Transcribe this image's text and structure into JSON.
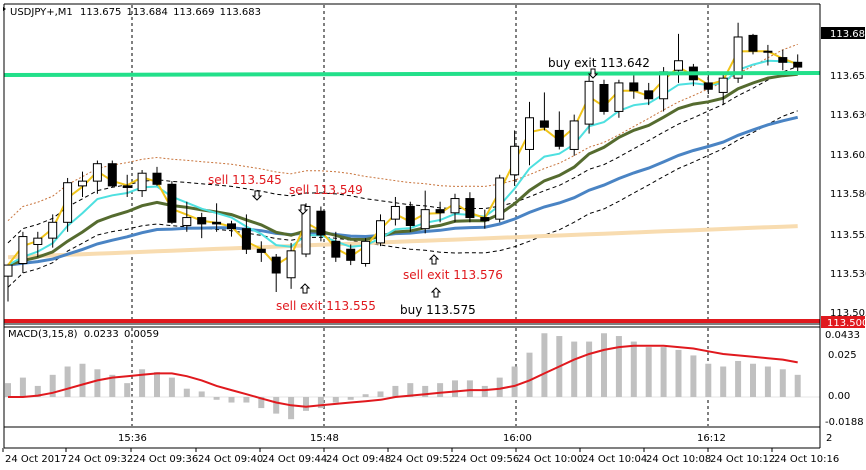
{
  "header": {
    "symbol": "USDJPY+,M1",
    "open": "113.675",
    "high": "113.684",
    "low": "113.669",
    "close": "113.683"
  },
  "macd": {
    "label": "MACD(3,15,8)",
    "main": "0.0233",
    "signal": "0.0059",
    "ticks": [
      "0.0433",
      "0.025",
      "0.00",
      "-0.0188"
    ]
  },
  "price_axis": {
    "labels": [
      "113.655",
      "113.630",
      "113.605",
      "113.580",
      "113.555",
      "113.530",
      "113.505"
    ],
    "current": "113.683",
    "marker_red": "113.500"
  },
  "time_axis": {
    "top_labels": [
      "15:36",
      "15:48",
      "16:00",
      "16:12"
    ],
    "bottom_labels": [
      "24 Oct 2017",
      "24 Oct 09:32",
      "24 Oct 09:36",
      "24 Oct 09:40",
      "24 Oct 09:44",
      "24 Oct 09:48",
      "24 Oct 09:52",
      "24 Oct 09:56",
      "24 Oct 10:00",
      "24 Oct 10:04",
      "24 Oct 10:08",
      "24 Oct 10:12",
      "24 Oct 10:16"
    ],
    "tag": "2"
  },
  "trade_labels": [
    {
      "id": "sell-1",
      "text": "sell 113.545"
    },
    {
      "id": "sell-2",
      "text": "sell 113.549"
    },
    {
      "id": "sell-exit-1",
      "text": "sell exit 113.555"
    },
    {
      "id": "sell-exit-2",
      "text": "sell exit 113.576"
    },
    {
      "id": "buy-1",
      "text": "buy 113.575"
    },
    {
      "id": "buy-exit-1",
      "text": "buy exit 113.642"
    }
  ],
  "colors": {
    "bull": "#ffffff",
    "bear": "#000000",
    "green_level": "#22e08a",
    "red_level": "#e0191e",
    "ma_fast": "#f0c419",
    "ma_cyan": "#4ee0e0",
    "ma_olive": "#556b2f",
    "ma_blue": "#4a84c4",
    "ma_beige": "#f8dcb0",
    "macd_signal": "#e0191e",
    "macd_hist": "#c0c0c0"
  },
  "candles": [
    {
      "o": 113.528,
      "h": 113.535,
      "l": 113.512,
      "c": 113.535
    },
    {
      "o": 113.536,
      "h": 113.556,
      "l": 113.53,
      "c": 113.553
    },
    {
      "o": 113.548,
      "h": 113.556,
      "l": 113.54,
      "c": 113.552
    },
    {
      "o": 113.552,
      "h": 113.567,
      "l": 113.546,
      "c": 113.562
    },
    {
      "o": 113.562,
      "h": 113.59,
      "l": 113.556,
      "c": 113.587
    },
    {
      "o": 113.585,
      "h": 113.594,
      "l": 113.578,
      "c": 113.588
    },
    {
      "o": 113.588,
      "h": 113.601,
      "l": 113.58,
      "c": 113.599
    },
    {
      "o": 113.599,
      "h": 113.601,
      "l": 113.584,
      "c": 113.585
    },
    {
      "o": 113.585,
      "h": 113.592,
      "l": 113.578,
      "c": 113.584
    },
    {
      "o": 113.582,
      "h": 113.595,
      "l": 113.578,
      "c": 113.593
    },
    {
      "o": 113.593,
      "h": 113.597,
      "l": 113.585,
      "c": 113.586
    },
    {
      "o": 113.586,
      "h": 113.588,
      "l": 113.561,
      "c": 113.562
    },
    {
      "o": 113.56,
      "h": 113.575,
      "l": 113.556,
      "c": 113.565
    },
    {
      "o": 113.565,
      "h": 113.568,
      "l": 113.552,
      "c": 113.561
    },
    {
      "o": 113.562,
      "h": 113.574,
      "l": 113.556,
      "c": 113.561
    },
    {
      "o": 113.561,
      "h": 113.563,
      "l": 113.553,
      "c": 113.558
    },
    {
      "o": 113.558,
      "h": 113.567,
      "l": 113.542,
      "c": 113.545
    },
    {
      "o": 113.545,
      "h": 113.55,
      "l": 113.537,
      "c": 113.543
    },
    {
      "o": 113.54,
      "h": 113.542,
      "l": 113.518,
      "c": 113.53
    },
    {
      "o": 113.527,
      "h": 113.549,
      "l": 113.52,
      "c": 113.544
    },
    {
      "o": 113.542,
      "h": 113.574,
      "l": 113.54,
      "c": 113.572
    },
    {
      "o": 113.569,
      "h": 113.572,
      "l": 113.55,
      "c": 113.554
    },
    {
      "o": 113.55,
      "h": 113.556,
      "l": 113.537,
      "c": 113.54
    },
    {
      "o": 113.545,
      "h": 113.548,
      "l": 113.535,
      "c": 113.538
    },
    {
      "o": 113.536,
      "h": 113.552,
      "l": 113.534,
      "c": 113.55
    },
    {
      "o": 113.549,
      "h": 113.567,
      "l": 113.547,
      "c": 113.563
    },
    {
      "o": 113.564,
      "h": 113.578,
      "l": 113.56,
      "c": 113.572
    },
    {
      "o": 113.572,
      "h": 113.575,
      "l": 113.556,
      "c": 113.56
    },
    {
      "o": 113.558,
      "h": 113.582,
      "l": 113.555,
      "c": 113.57
    },
    {
      "o": 113.57,
      "h": 113.575,
      "l": 113.562,
      "c": 113.568
    },
    {
      "o": 113.568,
      "h": 113.58,
      "l": 113.562,
      "c": 113.577
    },
    {
      "o": 113.577,
      "h": 113.581,
      "l": 113.562,
      "c": 113.565
    },
    {
      "o": 113.565,
      "h": 113.57,
      "l": 113.558,
      "c": 113.563
    },
    {
      "o": 113.564,
      "h": 113.592,
      "l": 113.562,
      "c": 113.59
    },
    {
      "o": 113.592,
      "h": 113.62,
      "l": 113.585,
      "c": 113.61
    },
    {
      "o": 113.608,
      "h": 113.638,
      "l": 113.598,
      "c": 113.628
    },
    {
      "o": 113.626,
      "h": 113.644,
      "l": 113.62,
      "c": 113.622
    },
    {
      "o": 113.62,
      "h": 113.632,
      "l": 113.608,
      "c": 113.61
    },
    {
      "o": 113.608,
      "h": 113.63,
      "l": 113.604,
      "c": 113.626
    },
    {
      "o": 113.624,
      "h": 113.655,
      "l": 113.618,
      "c": 113.651
    },
    {
      "o": 113.649,
      "h": 113.652,
      "l": 113.63,
      "c": 113.632
    },
    {
      "o": 113.632,
      "h": 113.652,
      "l": 113.628,
      "c": 113.65
    },
    {
      "o": 113.65,
      "h": 113.655,
      "l": 113.64,
      "c": 113.645
    },
    {
      "o": 113.645,
      "h": 113.65,
      "l": 113.636,
      "c": 113.64
    },
    {
      "o": 113.64,
      "h": 113.66,
      "l": 113.632,
      "c": 113.657
    },
    {
      "o": 113.658,
      "h": 113.681,
      "l": 113.65,
      "c": 113.664
    },
    {
      "o": 113.66,
      "h": 113.662,
      "l": 113.648,
      "c": 113.652
    },
    {
      "o": 113.65,
      "h": 113.656,
      "l": 113.643,
      "c": 113.646
    },
    {
      "o": 113.644,
      "h": 113.656,
      "l": 113.636,
      "c": 113.653
    },
    {
      "o": 113.653,
      "h": 113.688,
      "l": 113.65,
      "c": 113.679
    },
    {
      "o": 113.68,
      "h": 113.681,
      "l": 113.668,
      "c": 113.67
    },
    {
      "o": 113.67,
      "h": 113.674,
      "l": 113.661,
      "c": 113.67
    },
    {
      "o": 113.666,
      "h": 113.671,
      "l": 113.658,
      "c": 113.663
    },
    {
      "o": 113.663,
      "h": 113.668,
      "l": 113.656,
      "c": 113.66
    }
  ],
  "macd_hist": [
    0.01,
    0.014,
    0.008,
    0.016,
    0.022,
    0.024,
    0.02,
    0.016,
    0.01,
    0.02,
    0.018,
    0.014,
    0.006,
    0.004,
    -0.002,
    -0.004,
    -0.004,
    -0.008,
    -0.012,
    -0.016,
    -0.01,
    -0.008,
    -0.004,
    -0.002,
    0.002,
    0.004,
    0.008,
    0.01,
    0.008,
    0.01,
    0.012,
    0.012,
    0.008,
    0.014,
    0.022,
    0.032,
    0.046,
    0.044,
    0.04,
    0.04,
    0.046,
    0.044,
    0.04,
    0.036,
    0.036,
    0.034,
    0.03,
    0.024,
    0.022,
    0.026,
    0.024,
    0.022,
    0.02,
    0.016
  ],
  "macd_signal": [
    0.0,
    0.0,
    0.001,
    0.003,
    0.006,
    0.009,
    0.012,
    0.014,
    0.015,
    0.016,
    0.017,
    0.017,
    0.015,
    0.012,
    0.008,
    0.005,
    0.002,
    -0.001,
    -0.004,
    -0.006,
    -0.007,
    -0.006,
    -0.005,
    -0.004,
    -0.003,
    -0.002,
    0.0,
    0.001,
    0.002,
    0.003,
    0.004,
    0.005,
    0.005,
    0.006,
    0.008,
    0.012,
    0.017,
    0.022,
    0.027,
    0.031,
    0.034,
    0.036,
    0.037,
    0.037,
    0.037,
    0.036,
    0.035,
    0.033,
    0.031,
    0.03,
    0.029,
    0.028,
    0.027,
    0.025
  ]
}
